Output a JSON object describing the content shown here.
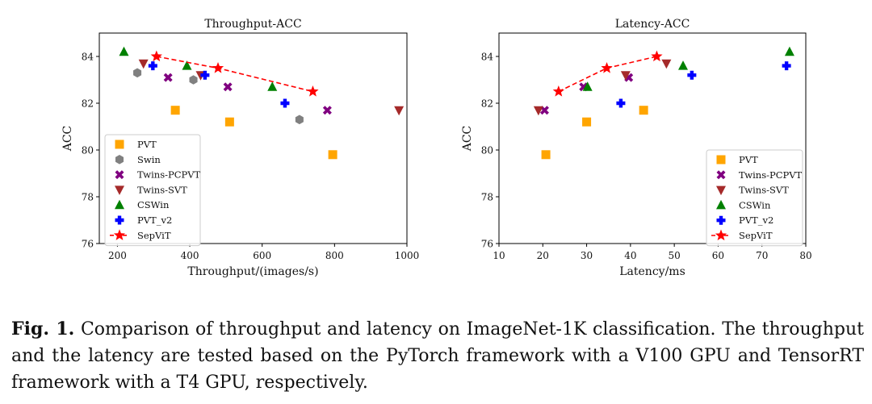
{
  "chart_data": [
    {
      "type": "scatter",
      "title": "Throughput-ACC",
      "xlabel": "Throughput/(images/s)",
      "ylabel": "ACC",
      "xlim": [
        150,
        1000
      ],
      "ylim": [
        76,
        85
      ],
      "xticks": [
        200,
        400,
        600,
        800,
        1000
      ],
      "yticks": [
        76,
        78,
        80,
        82,
        84
      ],
      "legend_position": "lower-left",
      "series": [
        {
          "name": "PVT",
          "marker": "square",
          "color": "#ffa500",
          "points": [
            [
              360,
              81.7
            ],
            [
              510,
              81.2
            ],
            [
              795,
              79.8
            ]
          ]
        },
        {
          "name": "Swin",
          "marker": "hexagon",
          "color": "#808080",
          "points": [
            [
              255,
              83.3
            ],
            [
              410,
              83.0
            ],
            [
              703,
              81.3
            ]
          ]
        },
        {
          "name": "Twins-PCPVT",
          "marker": "x",
          "color": "#800080",
          "points": [
            [
              340,
              83.1
            ],
            [
              505,
              82.7
            ],
            [
              780,
              81.7
            ]
          ]
        },
        {
          "name": "Twins-SVT",
          "marker": "triangle-down",
          "color": "#a52a2a",
          "points": [
            [
              272,
              83.7
            ],
            [
              430,
              83.2
            ],
            [
              978,
              81.7
            ]
          ]
        },
        {
          "name": "CSWin",
          "marker": "triangle-up",
          "color": "#008000",
          "points": [
            [
              218,
              84.2
            ],
            [
              392,
              83.6
            ],
            [
              628,
              82.7
            ]
          ]
        },
        {
          "name": "PVT_v2",
          "marker": "plus",
          "color": "#0000ff",
          "points": [
            [
              298,
              83.6
            ],
            [
              442,
              83.2
            ],
            [
              663,
              82.0
            ]
          ]
        },
        {
          "name": "SepViT",
          "marker": "star",
          "color": "#ff0000",
          "line": "dashed",
          "points": [
            [
              308,
              84.0
            ],
            [
              478,
              83.5
            ],
            [
              740,
              82.5
            ]
          ]
        }
      ]
    },
    {
      "type": "scatter",
      "title": "Latency-ACC",
      "xlabel": "Latency/ms",
      "ylabel": "ACC",
      "xlim": [
        10,
        80
      ],
      "ylim": [
        76,
        85
      ],
      "xticks": [
        10,
        20,
        30,
        40,
        50,
        60,
        70,
        80
      ],
      "yticks": [
        76,
        78,
        80,
        82,
        84
      ],
      "legend_position": "lower-right",
      "series": [
        {
          "name": "PVT",
          "marker": "square",
          "color": "#ffa500",
          "points": [
            [
              20.7,
              79.8
            ],
            [
              30.0,
              81.2
            ],
            [
              43.0,
              81.7
            ]
          ]
        },
        {
          "name": "Twins-PCPVT",
          "marker": "x",
          "color": "#800080",
          "points": [
            [
              20.4,
              81.7
            ],
            [
              29.3,
              82.7
            ],
            [
              39.6,
              83.1
            ]
          ]
        },
        {
          "name": "Twins-SVT",
          "marker": "triangle-down",
          "color": "#a52a2a",
          "points": [
            [
              19.0,
              81.7
            ],
            [
              38.9,
              83.2
            ],
            [
              48.2,
              83.7
            ]
          ]
        },
        {
          "name": "CSWin",
          "marker": "triangle-up",
          "color": "#008000",
          "points": [
            [
              30.2,
              82.7
            ],
            [
              52.0,
              83.6
            ],
            [
              76.3,
              84.2
            ]
          ]
        },
        {
          "name": "PVT_v2",
          "marker": "plus",
          "color": "#0000ff",
          "points": [
            [
              37.8,
              82.0
            ],
            [
              54.0,
              83.2
            ],
            [
              75.6,
              83.6
            ]
          ]
        },
        {
          "name": "SepViT",
          "marker": "star",
          "color": "#ff0000",
          "line": "dashed",
          "points": [
            [
              23.6,
              82.5
            ],
            [
              34.6,
              83.5
            ],
            [
              46.0,
              84.0
            ]
          ]
        }
      ]
    }
  ],
  "caption": {
    "label": "Fig. 1.",
    "text": "Comparison of throughput and latency on ImageNet-1K classification. The throughput and the latency are tested based on the PyTorch framework with a V100 GPU and TensorRT framework with a T4 GPU, respectively."
  }
}
